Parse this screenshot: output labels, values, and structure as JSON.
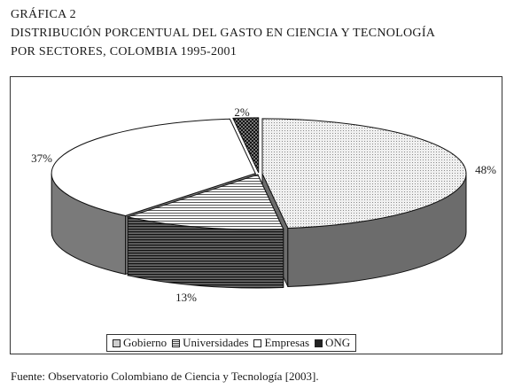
{
  "header": {
    "figure_label": "GRÁFICA 2",
    "title_line1": "DISTRIBUCIÓN PORCENTUAL DEL GASTO EN CIENCIA Y TECNOLOGÍA",
    "title_line2": "POR SECTORES, COLOMBIA 1995-2001"
  },
  "chart_data": {
    "type": "pie",
    "style": "3d-exploded",
    "slices": [
      {
        "label": "Gobierno",
        "value": 48,
        "value_label": "48%",
        "pattern": "dots",
        "color": "#dcdcdc"
      },
      {
        "label": "Universidades",
        "value": 13,
        "value_label": "13%",
        "pattern": "horizontal-lines",
        "color": "#9a9a9a"
      },
      {
        "label": "Empresas",
        "value": 37,
        "value_label": "37%",
        "pattern": "solid-white",
        "color": "#ffffff"
      },
      {
        "label": "ONG",
        "value": 2,
        "value_label": "2%",
        "pattern": "checker",
        "color": "#2a2a2a"
      }
    ],
    "legend_placement": "bottom"
  },
  "legend": {
    "items": [
      {
        "label": "Gobierno",
        "icon": "dotted-gray-swatch"
      },
      {
        "label": "Universidades",
        "icon": "striped-swatch"
      },
      {
        "label": "Empresas",
        "icon": "white-swatch"
      },
      {
        "label": "ONG",
        "icon": "dark-checker-swatch"
      }
    ]
  },
  "footer": {
    "source": "Fuente: Observatorio Colombiano de Ciencia y Tecnología [2003]."
  }
}
